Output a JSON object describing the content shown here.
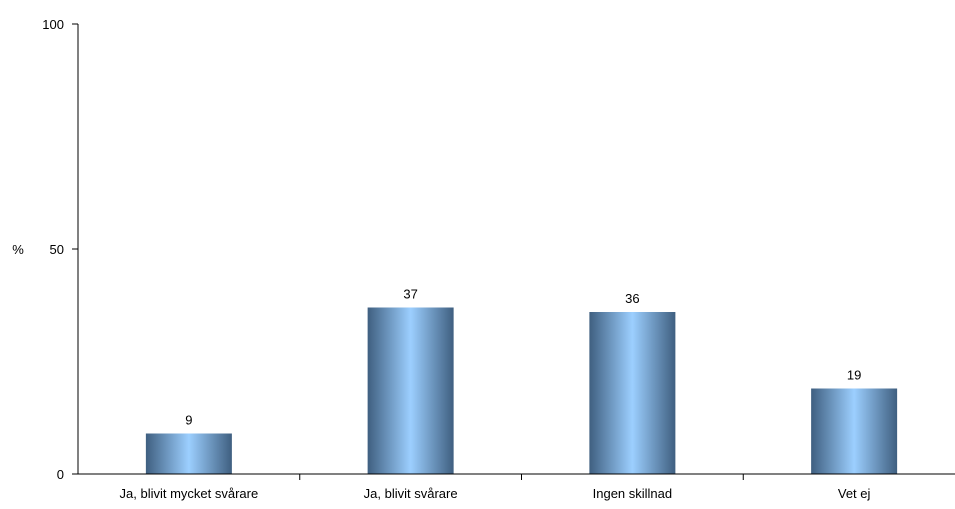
{
  "chart_data": {
    "type": "bar",
    "categories": [
      "Ja, blivit mycket svårare",
      "Ja, blivit svårare",
      "Ingen skillnad",
      "Vet ej"
    ],
    "values": [
      9,
      37,
      36,
      19
    ],
    "data_labels": [
      "9",
      "37",
      "36",
      "19"
    ],
    "ylabel": "%",
    "ylim": [
      0,
      100
    ],
    "yticks": [
      0,
      50,
      100
    ],
    "ytick_labels": [
      "0",
      "50",
      "100"
    ],
    "grid": false,
    "legend": "none",
    "colors": {
      "bar_edge": "#3f5f80",
      "bar_center": "#9ccfff",
      "axis": "#000000"
    }
  }
}
